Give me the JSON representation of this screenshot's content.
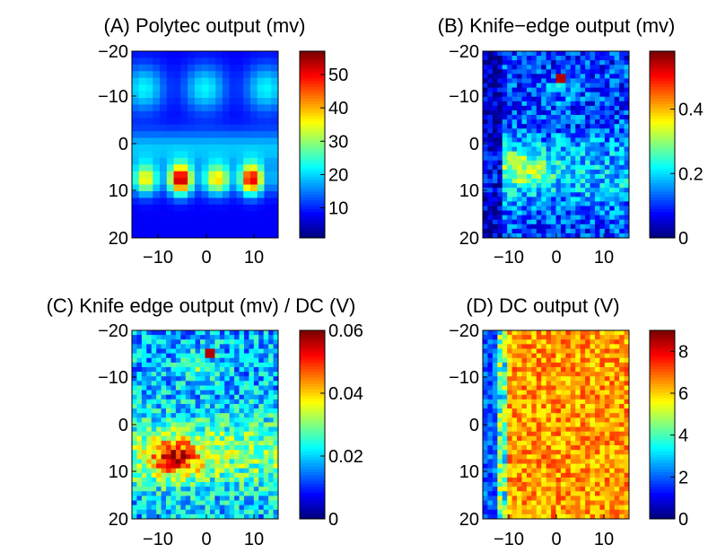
{
  "figure": {
    "background": "#ffffff",
    "colormap": "jet"
  },
  "chart_data": [
    {
      "type": "heatmap",
      "title": "(A) Polytec output (mv)",
      "x_ticks": [
        "−10",
        "0",
        "10"
      ],
      "y_ticks": [
        "−20",
        "−10",
        "0",
        "10",
        "20"
      ],
      "xlim": [
        -15,
        15
      ],
      "ylim": [
        -20,
        20
      ],
      "y_reversed": true,
      "grid": {
        "cols": 21,
        "rows": 28
      },
      "colorbar": {
        "min": 1,
        "max": 57,
        "ticks": [
          10,
          20,
          30,
          40,
          50
        ],
        "tick_labels": [
          "10",
          "20",
          "30",
          "40",
          "50"
        ]
      },
      "pattern": "smooth"
    },
    {
      "type": "heatmap",
      "title": "(B) Knife−edge output (mv)",
      "x_ticks": [
        "−10",
        "0",
        "10"
      ],
      "y_ticks": [
        "−20",
        "−10",
        "0",
        "10",
        "20"
      ],
      "xlim": [
        -15,
        15
      ],
      "ylim": [
        -20,
        20
      ],
      "y_reversed": true,
      "grid": {
        "cols": 30,
        "rows": 41
      },
      "colorbar": {
        "min": 0,
        "max": 0.58,
        "ticks": [
          0,
          0.2,
          0.4
        ],
        "tick_labels": [
          "0",
          "0.2",
          "0.4"
        ]
      },
      "pattern": "knife"
    },
    {
      "type": "heatmap",
      "title": "(C) Knife edge output (mv) / DC (V)",
      "x_ticks": [
        "−10",
        "0",
        "10"
      ],
      "y_ticks": [
        "−20",
        "−10",
        "0",
        "10",
        "20"
      ],
      "xlim": [
        -15,
        15
      ],
      "ylim": [
        -20,
        20
      ],
      "y_reversed": true,
      "grid": {
        "cols": 30,
        "rows": 41
      },
      "colorbar": {
        "min": 0,
        "max": 0.06,
        "ticks": [
          0,
          0.02,
          0.04,
          0.06
        ],
        "tick_labels": [
          "0",
          "0.02",
          "0.04",
          "0.06"
        ]
      },
      "pattern": "ratio"
    },
    {
      "type": "heatmap",
      "title": "(D) DC output (V)",
      "x_ticks": [
        "−10",
        "0",
        "10"
      ],
      "y_ticks": [
        "−20",
        "−10",
        "0",
        "10",
        "20"
      ],
      "xlim": [
        -15,
        15
      ],
      "ylim": [
        -20,
        20
      ],
      "y_reversed": true,
      "grid": {
        "cols": 30,
        "rows": 41
      },
      "colorbar": {
        "min": 0,
        "max": 9,
        "ticks": [
          0,
          2,
          4,
          6,
          8
        ],
        "tick_labels": [
          "0",
          "2",
          "4",
          "6",
          "8"
        ]
      },
      "pattern": "dc"
    }
  ]
}
